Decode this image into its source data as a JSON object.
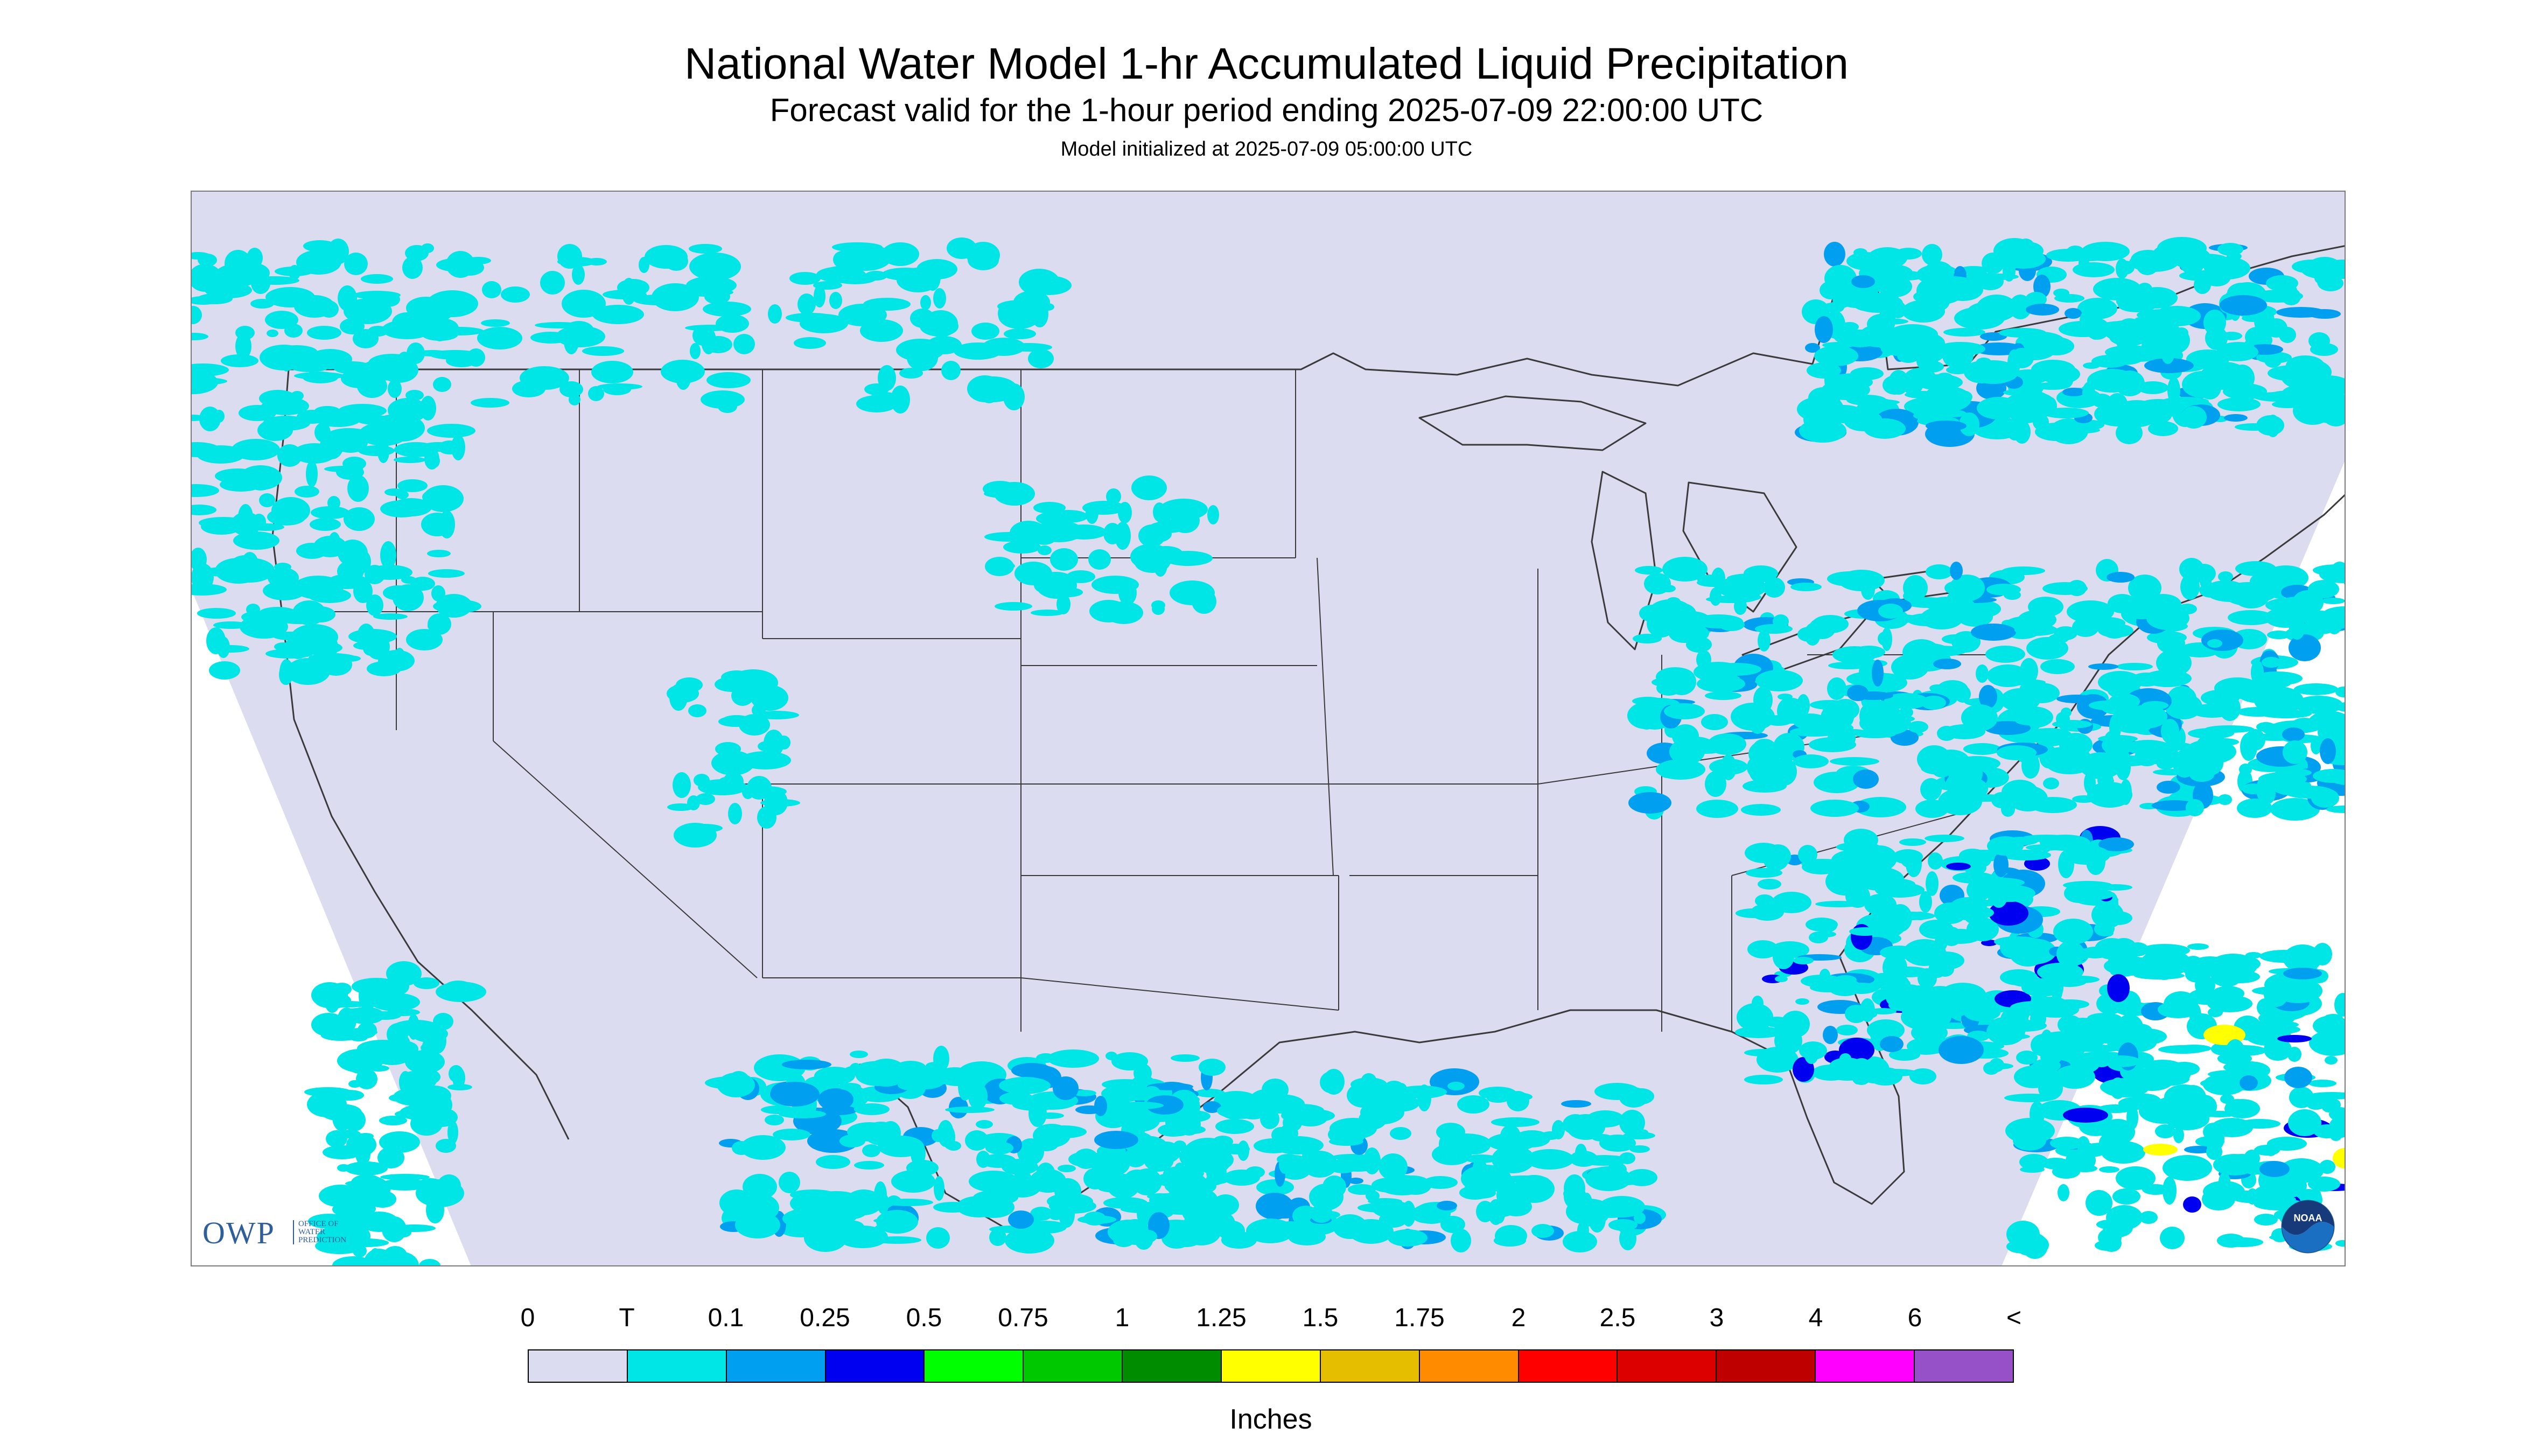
{
  "header": {
    "title": "National Water Model 1-hr Accumulated Liquid Precipitation",
    "subtitle": "Forecast valid for the 1-hour period ending 2025-07-09 22:00:00 UTC",
    "init": "Model initialized at 2025-07-09 05:00:00 UTC"
  },
  "map": {
    "background_color": "#dcdcf0",
    "outline_color": "#3a3a3a"
  },
  "logos": {
    "owp": "OWP",
    "owp_sub": "OFFICE OF WATER PREDICTION",
    "noaa": "NOAA"
  },
  "legend": {
    "units": "Inches",
    "labels": [
      "0",
      "T",
      "0.1",
      "0.25",
      "0.5",
      "0.75",
      "1",
      "1.25",
      "1.5",
      "1.75",
      "2",
      "2.5",
      "3",
      "4",
      "6",
      "<"
    ],
    "colors": [
      "#dcdcf0",
      "#00e5e5",
      "#009ff0",
      "#0000f0",
      "#00ff00",
      "#00c800",
      "#008c00",
      "#ffff00",
      "#e6be00",
      "#ff8c00",
      "#ff0000",
      "#dc0000",
      "#be0000",
      "#ff00ff",
      "#9650c8"
    ]
  }
}
